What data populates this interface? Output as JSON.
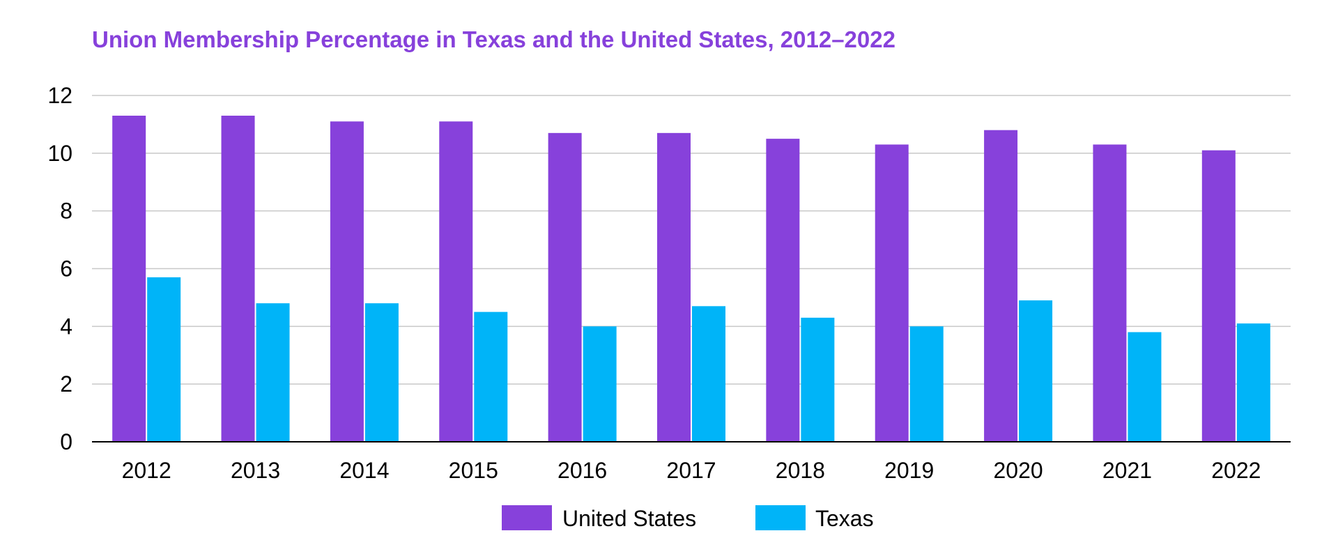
{
  "chart_data": {
    "type": "bar",
    "title": "Union Membership Percentage in Texas and the United States, 2012–2022",
    "xlabel": "",
    "ylabel": "",
    "categories": [
      "2012",
      "2013",
      "2014",
      "2015",
      "2016",
      "2017",
      "2018",
      "2019",
      "2020",
      "2021",
      "2022"
    ],
    "series": [
      {
        "name": "United States",
        "color": "#8741db",
        "values": [
          11.3,
          11.3,
          11.1,
          11.1,
          10.7,
          10.7,
          10.5,
          10.3,
          10.8,
          10.3,
          10.1
        ]
      },
      {
        "name": "Texas",
        "color": "#00b4f8",
        "values": [
          5.7,
          4.8,
          4.8,
          4.5,
          4.0,
          4.7,
          4.3,
          4.0,
          4.9,
          3.8,
          4.1
        ]
      }
    ],
    "ylim": [
      0,
      12
    ],
    "yticks": [
      0,
      2,
      4,
      6,
      8,
      10,
      12
    ],
    "grid": true,
    "legend": "bottom"
  },
  "colors": {
    "title": "#8741db",
    "gridline": "#c8c8c8",
    "axis": "#000000"
  }
}
